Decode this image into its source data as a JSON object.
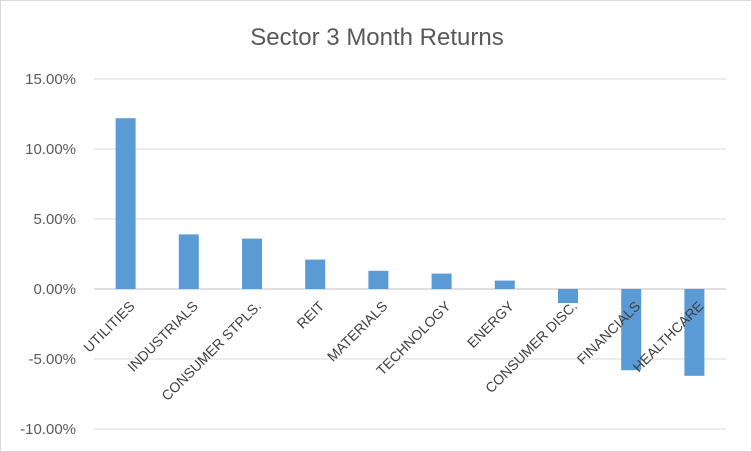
{
  "chart_data": {
    "type": "bar",
    "title": "Sector 3 Month Returns",
    "xlabel": "",
    "ylabel": "",
    "categories": [
      "UTILITIES",
      "INDUSTRIALS",
      "CONSUMER STPLS.",
      "REIT",
      "MATERIALS",
      "TECHNOLOGY",
      "ENERGY",
      "CONSUMER DISC.",
      "FINANCIALS",
      "HEALTHCARE"
    ],
    "values": [
      12.2,
      3.9,
      3.6,
      2.1,
      1.3,
      1.1,
      0.6,
      -1.0,
      -5.8,
      -6.2
    ],
    "unit": "%",
    "ylim": [
      -10,
      15
    ],
    "yticks": [
      "15.00%",
      "10.00%",
      "5.00%",
      "0.00%",
      "-5.00%",
      "-10.00%"
    ],
    "ytick_values": [
      15,
      10,
      5,
      0,
      -5,
      -10
    ],
    "grid": true,
    "legend": "none",
    "bar_color": "#5b9bd5"
  }
}
